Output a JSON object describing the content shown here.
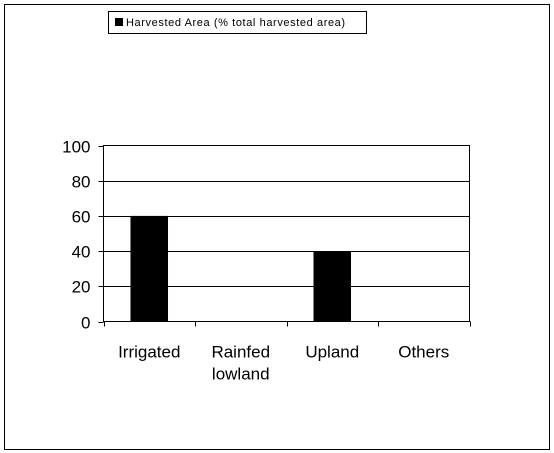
{
  "chart_data": {
    "type": "bar",
    "categories": [
      "Irrigated",
      "Rainfed lowland",
      "Upland",
      "Others"
    ],
    "category_lines": [
      [
        "Irrigated"
      ],
      [
        "Rainfed",
        "lowland"
      ],
      [
        "Upland"
      ],
      [
        "Others"
      ]
    ],
    "series": [
      {
        "name": "Harvested Area (% total harvested area)",
        "values": [
          60,
          0,
          40,
          0
        ],
        "color": "#000000"
      }
    ],
    "title": "",
    "xlabel": "",
    "ylabel": "",
    "ylim": [
      0,
      100
    ],
    "yticks": [
      0,
      20,
      40,
      60,
      80,
      100
    ],
    "grid": true,
    "legend_position": "top-left"
  }
}
